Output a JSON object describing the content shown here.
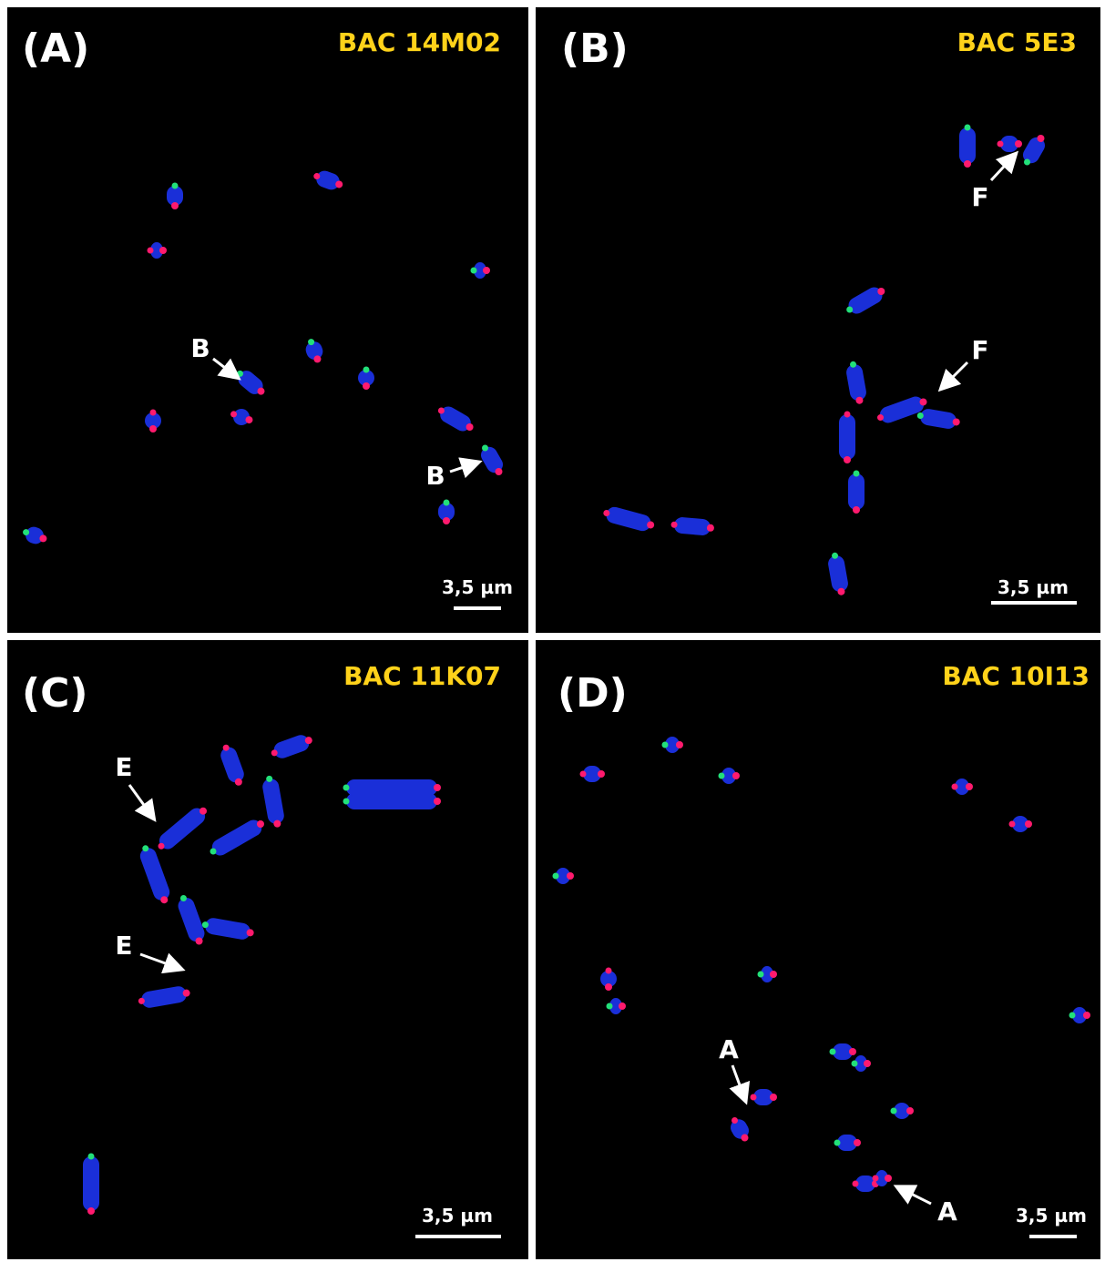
{
  "panels": [
    {
      "label": "(A)",
      "probe": "BAC 14M02",
      "scale": "3,5 µm",
      "markers": [
        "B",
        "B"
      ]
    },
    {
      "label": "(B)",
      "probe": "BAC 5E3",
      "scale": "3,5 µm",
      "markers": [
        "F",
        "F"
      ]
    },
    {
      "label": "(C)",
      "probe": "BAC 11K07",
      "scale": "3,5 µm",
      "markers": [
        "E",
        "E"
      ]
    },
    {
      "label": "(D)",
      "probe": "BAC 10I13",
      "scale": "3,5 µm",
      "markers": [
        "A",
        "A"
      ]
    }
  ]
}
